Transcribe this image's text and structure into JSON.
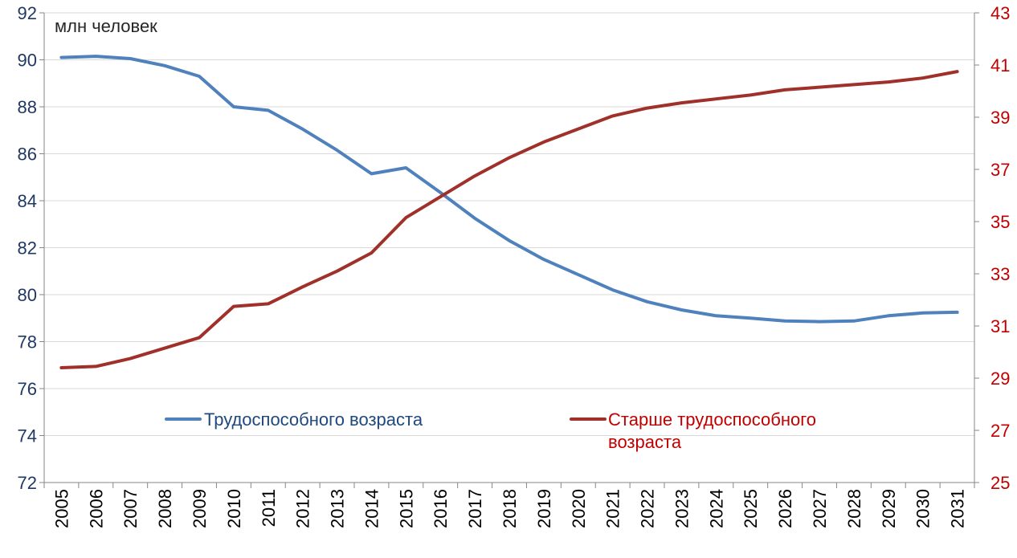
{
  "chart_data": {
    "type": "line",
    "unit_label": "млн человек",
    "categories": [
      "2005",
      "2006",
      "2007",
      "2008",
      "2009",
      "2010",
      "2011",
      "2012",
      "2013",
      "2014",
      "2015",
      "2016",
      "2017",
      "2018",
      "2019",
      "2020",
      "2021",
      "2022",
      "2023",
      "2024",
      "2025",
      "2026",
      "2027",
      "2028",
      "2029",
      "2030",
      "2031"
    ],
    "y_left": {
      "ylim": [
        72,
        92
      ],
      "ticks": [
        "72",
        "74",
        "76",
        "78",
        "80",
        "82",
        "84",
        "86",
        "88",
        "90",
        "92"
      ],
      "color": "#1F3864"
    },
    "y_right": {
      "ylim": [
        25,
        43
      ],
      "ticks": [
        "25",
        "27",
        "29",
        "31",
        "33",
        "35",
        "37",
        "39",
        "41",
        "43"
      ],
      "color": "#C00000"
    },
    "grid": true,
    "legend_position": "center",
    "series": [
      {
        "name": "Трудоспособного возраста",
        "axis": "left",
        "color": "#4F81BD",
        "values": [
          90.1,
          90.15,
          90.05,
          89.75,
          89.3,
          88.0,
          87.85,
          87.05,
          86.15,
          85.15,
          85.4,
          84.35,
          83.25,
          82.3,
          81.5,
          80.85,
          80.2,
          79.7,
          79.35,
          79.1,
          79.0,
          78.88,
          78.85,
          78.88,
          79.1,
          79.22,
          79.25
        ]
      },
      {
        "name": "Старше трудоспособного возраста",
        "legend_lines": [
          "Старше трудоспособного",
          "возраста"
        ],
        "axis": "right",
        "color": "#A0302A",
        "values": [
          29.4,
          29.45,
          29.75,
          30.15,
          30.55,
          31.75,
          31.85,
          32.5,
          33.1,
          33.8,
          35.15,
          35.95,
          36.75,
          37.45,
          38.05,
          38.55,
          39.05,
          39.35,
          39.55,
          39.7,
          39.85,
          40.05,
          40.15,
          40.25,
          40.35,
          40.5,
          40.75
        ]
      }
    ]
  }
}
